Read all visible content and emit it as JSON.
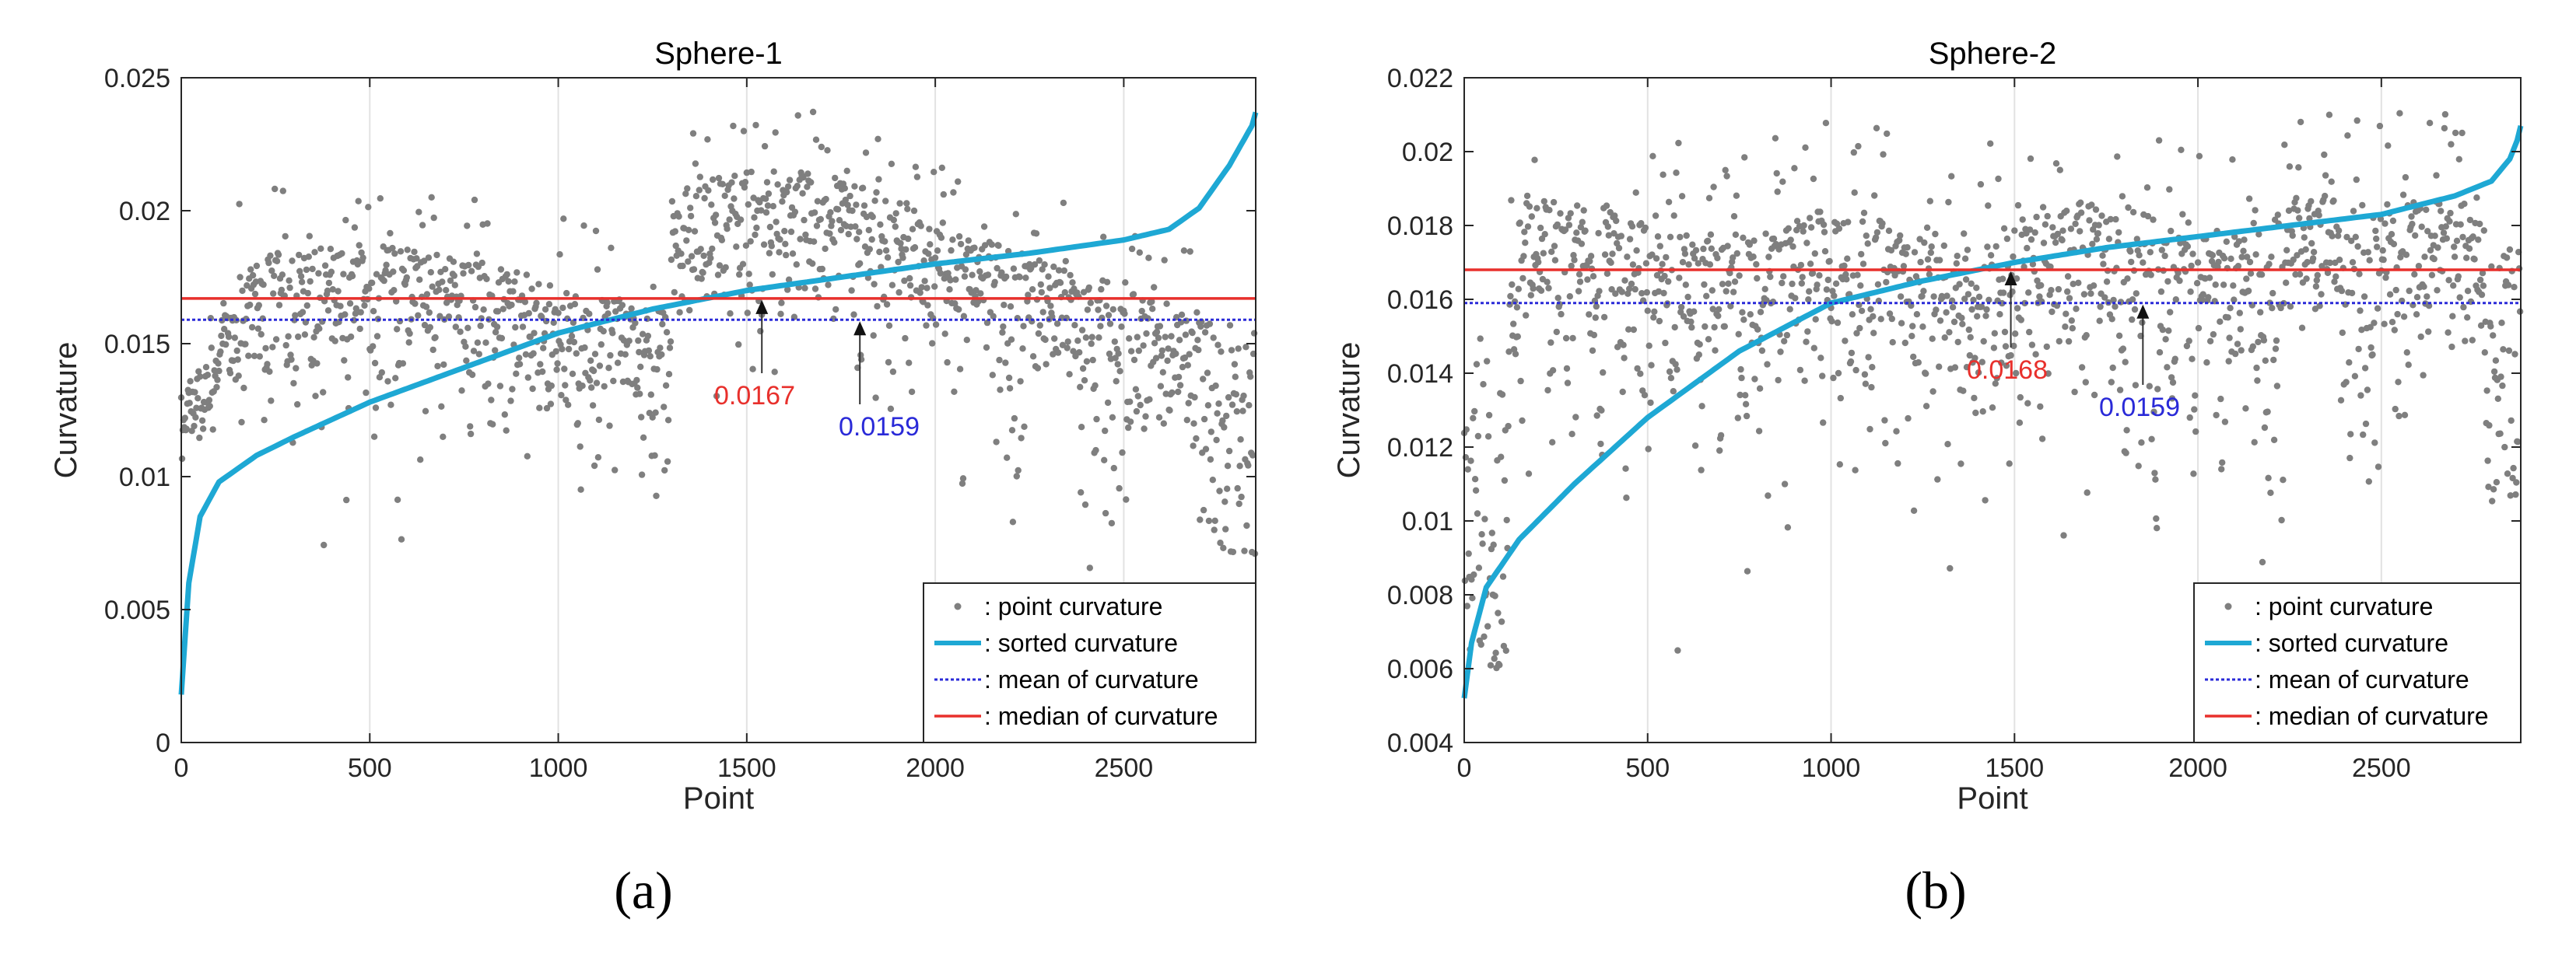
{
  "colors": {
    "points": "#7f7f7f",
    "sorted": "#1ea8d4",
    "mean": "#2a2ad8",
    "median": "#e8302c",
    "grid": "#e2e2e2",
    "axis": "#262626"
  },
  "legend": {
    "point": ": point curvature",
    "sorted": ": sorted curvature",
    "mean": ": mean of curvature",
    "median": ": median of curvature"
  },
  "chart_data": [
    {
      "type": "scatter",
      "panel": "(a)",
      "title": "Sphere-1",
      "xlabel": "Point",
      "ylabel": "Curvature",
      "xlim": [
        0,
        2850
      ],
      "ylim": [
        0,
        0.025
      ],
      "xticks": [
        0,
        500,
        1000,
        1500,
        2000,
        2500
      ],
      "xtick_labels": [
        "0",
        "500",
        "1000",
        "1500",
        "2000",
        "2500"
      ],
      "yticks": [
        0,
        0.005,
        0.01,
        0.015,
        0.02,
        0.025
      ],
      "ytick_labels": [
        "0",
        "0.005",
        "0.01",
        "0.015",
        "0.02",
        "0.025"
      ],
      "n_points": 2850,
      "mean": 0.0159,
      "median": 0.0167,
      "legend_position": "bottom-right",
      "sorted_curve": {
        "x": [
          0,
          20,
          50,
          100,
          200,
          300,
          500,
          750,
          1000,
          1250,
          1500,
          1750,
          2000,
          2250,
          2500,
          2620,
          2700,
          2780,
          2840,
          2850
        ],
        "y": [
          0.0018,
          0.006,
          0.0085,
          0.0098,
          0.0108,
          0.0115,
          0.0128,
          0.0141,
          0.0154,
          0.0163,
          0.017,
          0.0175,
          0.018,
          0.0184,
          0.0189,
          0.0193,
          0.0201,
          0.0217,
          0.0232,
          0.0237
        ]
      },
      "annotations": [
        {
          "label": "0.0167",
          "x": 1540,
          "y": 0.0167,
          "color": "median"
        },
        {
          "label": "0.0159",
          "x": 1800,
          "y": 0.0159,
          "color": "mean"
        }
      ]
    },
    {
      "type": "scatter",
      "panel": "(b)",
      "title": "Sphere-2",
      "xlabel": "Point",
      "ylabel": "Curvature",
      "xlim": [
        0,
        2880
      ],
      "ylim": [
        0.004,
        0.022
      ],
      "xticks": [
        0,
        500,
        1000,
        1500,
        2000,
        2500
      ],
      "xtick_labels": [
        "0",
        "500",
        "1000",
        "1500",
        "2000",
        "2500"
      ],
      "yticks": [
        0.004,
        0.006,
        0.008,
        0.01,
        0.012,
        0.014,
        0.016,
        0.018,
        0.02,
        0.022
      ],
      "ytick_labels": [
        "0.004",
        "0.006",
        "0.008",
        "0.01",
        "0.012",
        "0.014",
        "0.016",
        "0.018",
        "0.02",
        "0.022"
      ],
      "n_points": 2880,
      "mean": 0.0159,
      "median": 0.0168,
      "legend_position": "bottom-right",
      "sorted_curve": {
        "x": [
          0,
          20,
          60,
          150,
          300,
          500,
          750,
          1000,
          1250,
          1500,
          1750,
          2000,
          2250,
          2500,
          2700,
          2800,
          2850,
          2870,
          2880
        ],
        "y": [
          0.0052,
          0.0067,
          0.0082,
          0.0095,
          0.011,
          0.0128,
          0.0146,
          0.0159,
          0.0165,
          0.017,
          0.0174,
          0.0177,
          0.018,
          0.0183,
          0.0188,
          0.0192,
          0.0198,
          0.0203,
          0.0207
        ]
      },
      "annotations": [
        {
          "label": "0.0168",
          "x": 1490,
          "y": 0.0168,
          "color": "median"
        },
        {
          "label": "0.0159",
          "x": 1850,
          "y": 0.0159,
          "color": "mean"
        }
      ]
    }
  ],
  "panels": [
    {
      "label": "(a)"
    },
    {
      "label": "(b)"
    }
  ]
}
